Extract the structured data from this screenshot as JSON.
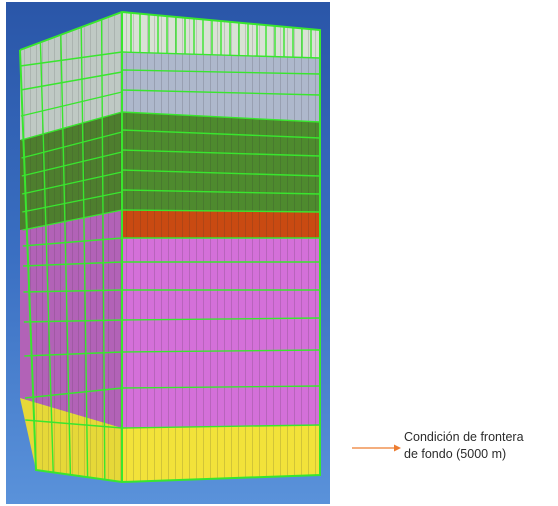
{
  "annotation": {
    "line1": "Condición de frontera",
    "line2": "de fondo (5000 m)",
    "arrow_color": "#ED7D31"
  },
  "colors": {
    "background_top": "#2F5FB3",
    "background_bottom": "#4C86D6",
    "mesh_lines": "#39E62E",
    "layer_top": "#D9E1D5",
    "layer_upper": "#AEB8CC",
    "layer_middle": "#4E8A2E",
    "layer_red": "#C94A12",
    "layer_pink": "#D470D9",
    "layer_bottom": "#F2E23A"
  },
  "icons": [
    "mesh-block-3d",
    "arrow-right-icon"
  ]
}
